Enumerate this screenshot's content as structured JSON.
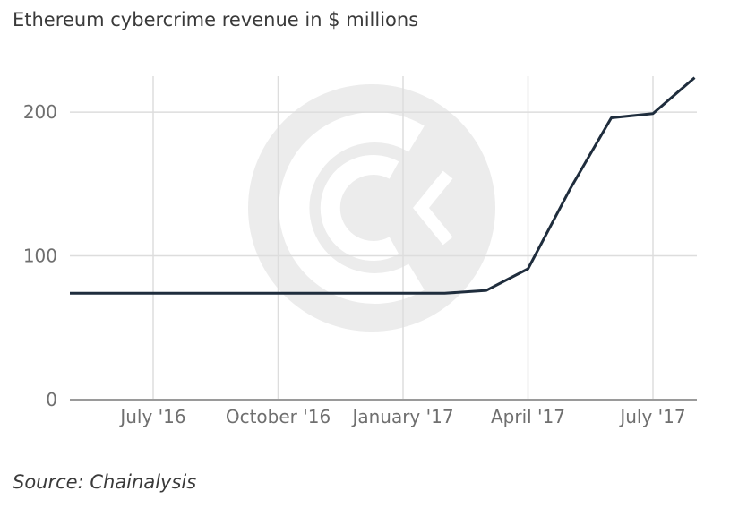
{
  "chart_data": {
    "type": "line",
    "title": "Ethereum cybercrime revenue in $ millions",
    "x_ticks": [
      "July '16",
      "October '16",
      "January '17",
      "April '17",
      "July '17"
    ],
    "y_ticks": [
      "0",
      "100",
      "200"
    ],
    "ylim": [
      0,
      225
    ],
    "grid": true,
    "x": [
      "2016-05",
      "2016-06",
      "2016-07",
      "2016-08",
      "2016-09",
      "2016-10",
      "2016-11",
      "2016-12",
      "2017-01",
      "2017-02",
      "2017-03",
      "2017-04",
      "2017-05",
      "2017-06",
      "2017-07",
      "2017-08"
    ],
    "series": [
      {
        "color": "#1f2d3d",
        "values": [
          74,
          74,
          74,
          74,
          74,
          74,
          74,
          74,
          74,
          74,
          76,
          91,
          146,
          196,
          199,
          224
        ]
      }
    ]
  },
  "source": "Source: Chainalysis",
  "watermark": "chainalysis-logo"
}
